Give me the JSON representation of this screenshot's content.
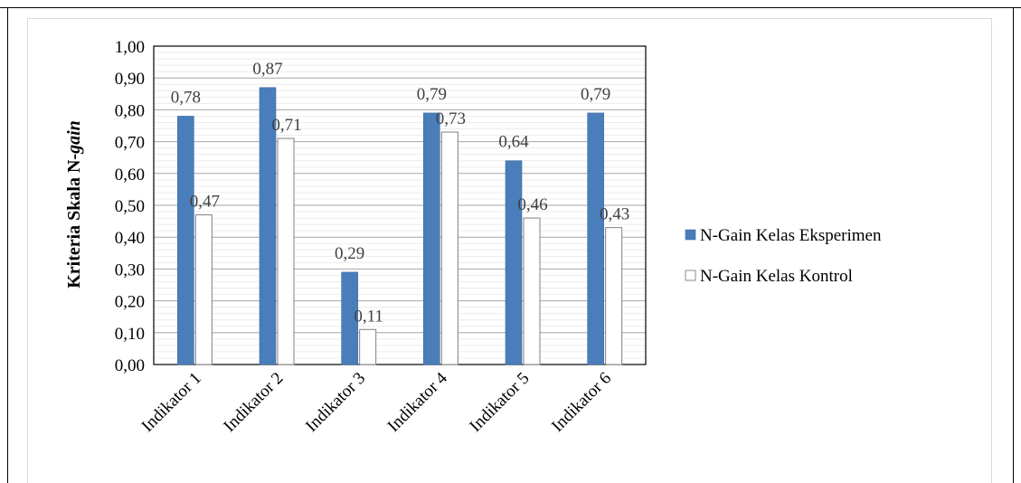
{
  "chart_data": {
    "type": "bar",
    "title": "",
    "xlabel": "",
    "ylabel": "Kriteria Skala N-",
    "ylabel_italic": "gain",
    "categories": [
      "Indikator 1",
      "Indikator 2",
      "Indikator 3",
      "Indikator 4",
      "Indikator 5",
      "Indikator 6"
    ],
    "series": [
      {
        "name": "N-Gain Kelas Eksperimen",
        "values": [
          0.78,
          0.87,
          0.29,
          0.79,
          0.64,
          0.79
        ],
        "labels": [
          "0,78",
          "0,87",
          "0,29",
          "0,79",
          "0,64",
          "0,79"
        ],
        "color": "#4a7ebb",
        "stroke": "#3b6aa3"
      },
      {
        "name": "N-Gain Kelas Kontrol",
        "values": [
          0.47,
          0.71,
          0.11,
          0.73,
          0.46,
          0.43
        ],
        "labels": [
          "0,47",
          "0,71",
          "0,11",
          "0,73",
          "0,46",
          "0,43"
        ],
        "color": "#ffffff",
        "stroke": "#808080"
      }
    ],
    "ylim": [
      0,
      1.0
    ],
    "yticks": [
      0,
      0.1,
      0.2,
      0.3,
      0.4,
      0.5,
      0.6,
      0.7,
      0.8,
      0.9,
      1.0
    ],
    "ytick_labels": [
      "0,00",
      "0,10",
      "0,20",
      "0,30",
      "0,40",
      "0,50",
      "0,60",
      "0,70",
      "0,80",
      "0,90",
      "1,00"
    ],
    "grid": true,
    "legend_position": "right"
  }
}
